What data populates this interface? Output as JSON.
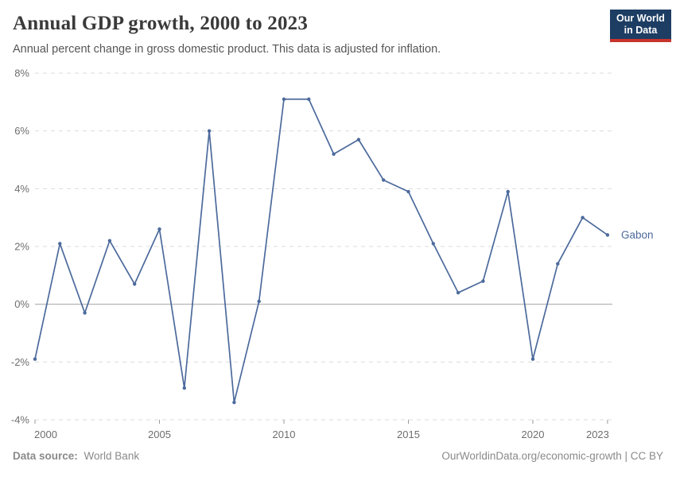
{
  "header": {
    "title": "Annual GDP growth, 2000 to 2023",
    "subtitle": "Annual percent change in gross domestic product. This data is adjusted for inflation."
  },
  "logo": {
    "line1": "Our World",
    "line2": "in Data",
    "bg_color": "#1d3d63",
    "bar_color": "#c8342c"
  },
  "chart_data": {
    "type": "line",
    "title": "Annual GDP growth, 2000 to 2023",
    "xlabel": "",
    "ylabel": "",
    "unit": "%",
    "xlim": [
      2000,
      2023
    ],
    "ylim": [
      -4,
      8
    ],
    "grid": "horizontal-dashed",
    "zero_line": true,
    "legend_position": "end-of-line",
    "x": [
      2000,
      2001,
      2002,
      2003,
      2004,
      2005,
      2006,
      2007,
      2008,
      2009,
      2010,
      2011,
      2012,
      2013,
      2014,
      2015,
      2016,
      2017,
      2018,
      2019,
      2020,
      2021,
      2022,
      2023
    ],
    "series": [
      {
        "name": "Gabon",
        "color": "#4c6a9c",
        "values": [
          -1.9,
          2.1,
          -0.3,
          2.2,
          0.7,
          2.6,
          -2.9,
          6.0,
          -3.4,
          0.1,
          7.1,
          7.1,
          5.2,
          5.7,
          4.3,
          3.9,
          2.1,
          0.4,
          0.8,
          3.9,
          -1.9,
          1.4,
          3.0,
          2.4
        ]
      }
    ],
    "yticks": [
      {
        "value": 8,
        "label": "8%"
      },
      {
        "value": 6,
        "label": "6%"
      },
      {
        "value": 4,
        "label": "4%"
      },
      {
        "value": 2,
        "label": "2%"
      },
      {
        "value": 0,
        "label": "0%"
      },
      {
        "value": -2,
        "label": "-2%"
      },
      {
        "value": -4,
        "label": "-4%"
      }
    ],
    "xticks": [
      {
        "value": 2000,
        "label": "2000"
      },
      {
        "value": 2005,
        "label": "2005"
      },
      {
        "value": 2010,
        "label": "2010"
      },
      {
        "value": 2015,
        "label": "2015"
      },
      {
        "value": 2020,
        "label": "2020"
      },
      {
        "value": 2023,
        "label": "2023"
      }
    ],
    "colors": {
      "line": "#4c6a9c",
      "gridline": "#dcdcdc",
      "zero_line": "#a1a1a1",
      "axis_text": "#6e6e6e"
    }
  },
  "footer": {
    "source_label": "Data source:",
    "source_value": "World Bank",
    "right": "OurWorldinData.org/economic-growth | CC BY"
  }
}
